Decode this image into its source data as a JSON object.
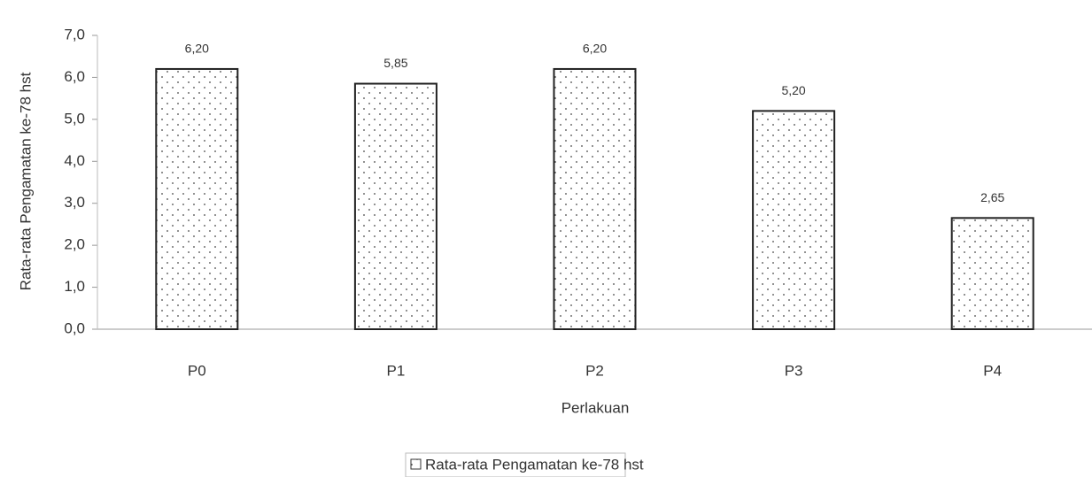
{
  "chart_data": {
    "type": "bar",
    "x_label": "Perlakuan",
    "y_label": "Rata-rata Pengamatan ke-78 hst",
    "categories": [
      "P0",
      "P1",
      "P2",
      "P3",
      "P4"
    ],
    "series": [
      {
        "name": "Rata-rata Pengamatan ke-78 hst",
        "color": "#222222",
        "values": [
          6.2,
          5.85,
          6.2,
          5.2,
          2.65
        ],
        "value_labels": [
          "6,20",
          "5,85",
          "6,20",
          "5,20",
          "2,65"
        ]
      }
    ],
    "ylim": [
      0,
      7
    ],
    "yticks": [
      {
        "value": 0,
        "label": "0,0"
      },
      {
        "value": 1,
        "label": "1,0"
      },
      {
        "value": 2,
        "label": "2,0"
      },
      {
        "value": 3,
        "label": "3,0"
      },
      {
        "value": 4,
        "label": "4,0"
      },
      {
        "value": 5,
        "label": "5,0"
      },
      {
        "value": 6,
        "label": "6,0"
      },
      {
        "value": 7,
        "label": "7,0"
      }
    ],
    "legend": "bottom"
  }
}
